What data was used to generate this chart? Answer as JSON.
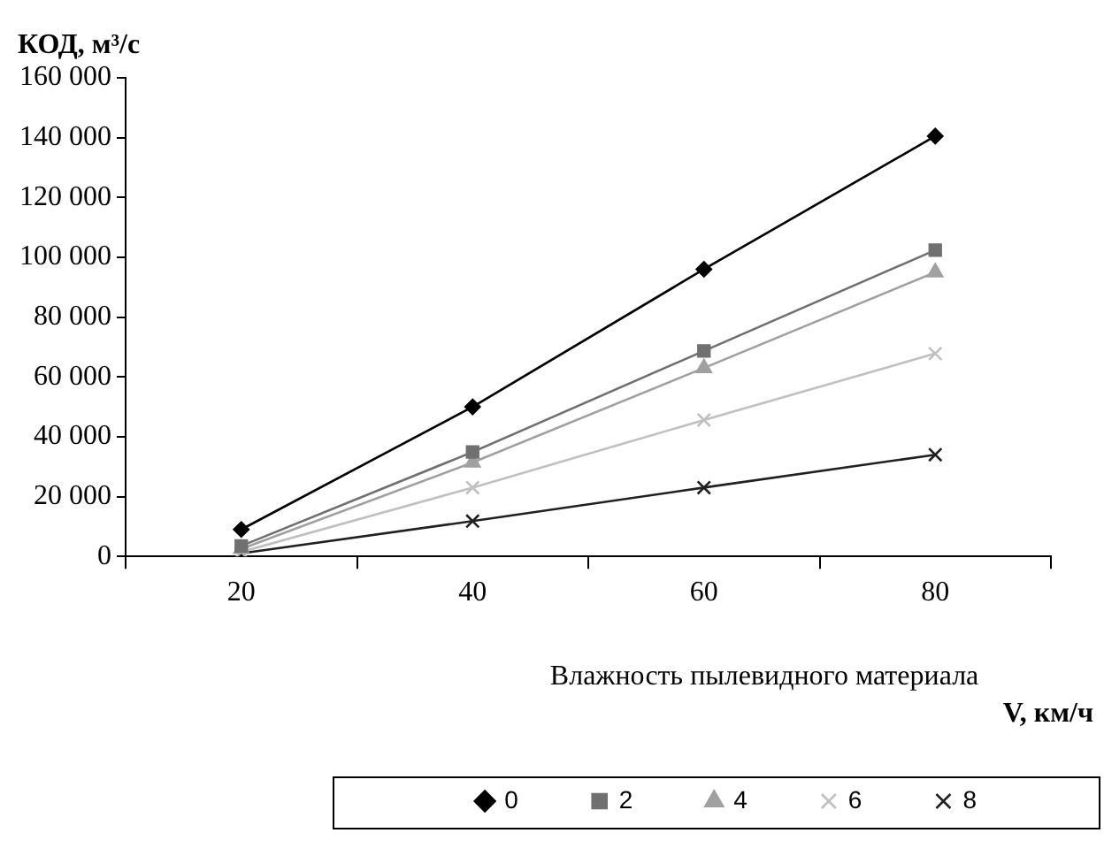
{
  "chart_data": {
    "type": "line",
    "xlabel": "V, км/ч",
    "ylabel": "КОД, м³/с",
    "legend_title": "Влажность пылевидного материала",
    "legend": "bottom",
    "grid": false,
    "categories": [
      "20",
      "40",
      "60",
      "80"
    ],
    "ylim": [
      0,
      160000
    ],
    "yticks": [
      0,
      {
        "value": 20000,
        "label": "20 000"
      },
      {
        "value": 40000,
        "label": "40 000"
      },
      {
        "value": 60000,
        "label": "60 000"
      },
      {
        "value": 80000,
        "label": "80 000"
      },
      {
        "value": 100000,
        "label": "100 000"
      },
      {
        "value": 120000,
        "label": "120 000"
      },
      {
        "value": 140000,
        "label": "140 000"
      },
      {
        "value": 160000,
        "label": "160 000"
      }
    ],
    "series": [
      {
        "name": "0",
        "color": "#000000",
        "marker": "diamond",
        "values": [
          9000,
          50000,
          96000,
          140500
        ]
      },
      {
        "name": "2",
        "color": "#707070",
        "marker": "square",
        "values": [
          3500,
          34900,
          68700,
          102400
        ]
      },
      {
        "name": "4",
        "color": "#a0a0a0",
        "marker": "triangle",
        "values": [
          2500,
          31400,
          63000,
          95000
        ]
      },
      {
        "name": "6",
        "color": "#c0c0c0",
        "marker": "cross",
        "values": [
          1500,
          23000,
          45600,
          67800
        ]
      },
      {
        "name": "8",
        "color": "#202020",
        "marker": "cross",
        "values": [
          1000,
          11800,
          23000,
          34000
        ]
      }
    ]
  }
}
